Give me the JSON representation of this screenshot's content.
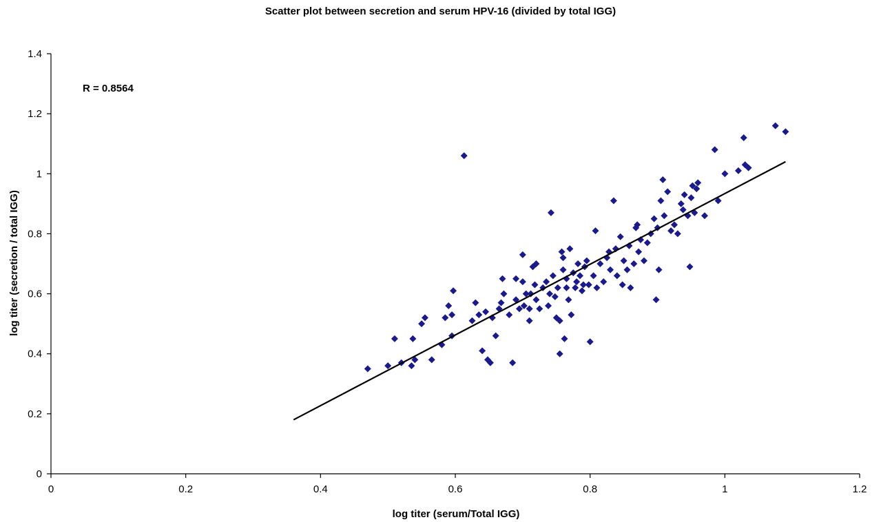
{
  "chart_data": {
    "type": "scatter",
    "title": "Scatter plot between secretion and serum HPV-16 (divided by total IGG)",
    "xlabel": "log titer (serum/Total IGG)",
    "ylabel": "log titer (secretion / total IGG)",
    "xlim": [
      0,
      1.2
    ],
    "ylim": [
      0,
      1.4
    ],
    "x_ticks": [
      0,
      0.2,
      0.4,
      0.6,
      0.8,
      1,
      1.2
    ],
    "x_tick_labels": [
      "0",
      "0.2",
      "0.4",
      "0.6",
      "0.8",
      "1",
      "1.2"
    ],
    "y_ticks": [
      0,
      0.2,
      0.4,
      0.6,
      0.8,
      1,
      1.2,
      1.4
    ],
    "y_tick_labels": [
      "0",
      "0.2",
      "0.4",
      "0.6",
      "0.8",
      "1",
      "1.2",
      "1.4"
    ],
    "grid": false,
    "annotation": "R = 0.8564",
    "marker_color": "#1a1a8c",
    "trendline": {
      "x": [
        0.36,
        1.09
      ],
      "y": [
        0.18,
        1.04
      ],
      "color": "#000000"
    },
    "series": [
      {
        "points": [
          [
            0.47,
            0.35
          ],
          [
            0.5,
            0.36
          ],
          [
            0.51,
            0.45
          ],
          [
            0.52,
            0.37
          ],
          [
            0.535,
            0.36
          ],
          [
            0.54,
            0.38
          ],
          [
            0.537,
            0.45
          ],
          [
            0.55,
            0.5
          ],
          [
            0.555,
            0.52
          ],
          [
            0.565,
            0.38
          ],
          [
            0.58,
            0.43
          ],
          [
            0.585,
            0.52
          ],
          [
            0.59,
            0.56
          ],
          [
            0.595,
            0.53
          ],
          [
            0.595,
            0.46
          ],
          [
            0.597,
            0.61
          ],
          [
            0.613,
            1.06
          ],
          [
            0.625,
            0.51
          ],
          [
            0.63,
            0.57
          ],
          [
            0.635,
            0.53
          ],
          [
            0.64,
            0.41
          ],
          [
            0.645,
            0.54
          ],
          [
            0.648,
            0.38
          ],
          [
            0.652,
            0.37
          ],
          [
            0.655,
            0.52
          ],
          [
            0.66,
            0.46
          ],
          [
            0.665,
            0.55
          ],
          [
            0.668,
            0.57
          ],
          [
            0.67,
            0.65
          ],
          [
            0.672,
            0.6
          ],
          [
            0.68,
            0.53
          ],
          [
            0.685,
            0.37
          ],
          [
            0.69,
            0.58
          ],
          [
            0.69,
            0.65
          ],
          [
            0.695,
            0.55
          ],
          [
            0.7,
            0.73
          ],
          [
            0.7,
            0.64
          ],
          [
            0.702,
            0.56
          ],
          [
            0.705,
            0.6
          ],
          [
            0.71,
            0.51
          ],
          [
            0.71,
            0.55
          ],
          [
            0.712,
            0.6
          ],
          [
            0.715,
            0.69
          ],
          [
            0.718,
            0.63
          ],
          [
            0.72,
            0.58
          ],
          [
            0.72,
            0.7
          ],
          [
            0.725,
            0.55
          ],
          [
            0.73,
            0.62
          ],
          [
            0.735,
            0.64
          ],
          [
            0.738,
            0.56
          ],
          [
            0.74,
            0.6
          ],
          [
            0.742,
            0.87
          ],
          [
            0.745,
            0.66
          ],
          [
            0.748,
            0.59
          ],
          [
            0.75,
            0.52
          ],
          [
            0.752,
            0.62
          ],
          [
            0.755,
            0.51
          ],
          [
            0.755,
            0.4
          ],
          [
            0.758,
            0.74
          ],
          [
            0.76,
            0.68
          ],
          [
            0.76,
            0.72
          ],
          [
            0.762,
            0.45
          ],
          [
            0.765,
            0.62
          ],
          [
            0.765,
            0.65
          ],
          [
            0.768,
            0.58
          ],
          [
            0.77,
            0.75
          ],
          [
            0.772,
            0.53
          ],
          [
            0.775,
            0.67
          ],
          [
            0.778,
            0.62
          ],
          [
            0.78,
            0.64
          ],
          [
            0.782,
            0.7
          ],
          [
            0.785,
            0.66
          ],
          [
            0.788,
            0.61
          ],
          [
            0.79,
            0.63
          ],
          [
            0.792,
            0.69
          ],
          [
            0.795,
            0.71
          ],
          [
            0.798,
            0.63
          ],
          [
            0.8,
            0.44
          ],
          [
            0.805,
            0.66
          ],
          [
            0.808,
            0.81
          ],
          [
            0.81,
            0.62
          ],
          [
            0.815,
            0.7
          ],
          [
            0.82,
            0.64
          ],
          [
            0.825,
            0.72
          ],
          [
            0.828,
            0.74
          ],
          [
            0.83,
            0.68
          ],
          [
            0.835,
            0.91
          ],
          [
            0.838,
            0.75
          ],
          [
            0.84,
            0.66
          ],
          [
            0.845,
            0.79
          ],
          [
            0.848,
            0.63
          ],
          [
            0.85,
            0.71
          ],
          [
            0.855,
            0.68
          ],
          [
            0.858,
            0.76
          ],
          [
            0.86,
            0.62
          ],
          [
            0.865,
            0.7
          ],
          [
            0.868,
            0.82
          ],
          [
            0.87,
            0.83
          ],
          [
            0.872,
            0.74
          ],
          [
            0.875,
            0.78
          ],
          [
            0.88,
            0.71
          ],
          [
            0.885,
            0.77
          ],
          [
            0.89,
            0.8
          ],
          [
            0.895,
            0.85
          ],
          [
            0.898,
            0.58
          ],
          [
            0.9,
            0.82
          ],
          [
            0.902,
            0.68
          ],
          [
            0.905,
            0.91
          ],
          [
            0.908,
            0.98
          ],
          [
            0.91,
            0.86
          ],
          [
            0.915,
            0.94
          ],
          [
            0.92,
            0.81
          ],
          [
            0.925,
            0.83
          ],
          [
            0.93,
            0.8
          ],
          [
            0.935,
            0.9
          ],
          [
            0.938,
            0.88
          ],
          [
            0.94,
            0.93
          ],
          [
            0.945,
            0.86
          ],
          [
            0.948,
            0.69
          ],
          [
            0.95,
            0.92
          ],
          [
            0.952,
            0.96
          ],
          [
            0.955,
            0.87
          ],
          [
            0.958,
            0.95
          ],
          [
            0.96,
            0.97
          ],
          [
            0.97,
            0.86
          ],
          [
            0.985,
            1.08
          ],
          [
            0.99,
            0.91
          ],
          [
            1.0,
            1.0
          ],
          [
            1.02,
            1.01
          ],
          [
            1.028,
            1.12
          ],
          [
            1.03,
            1.03
          ],
          [
            1.035,
            1.02
          ],
          [
            1.075,
            1.16
          ],
          [
            1.09,
            1.14
          ]
        ]
      }
    ]
  }
}
